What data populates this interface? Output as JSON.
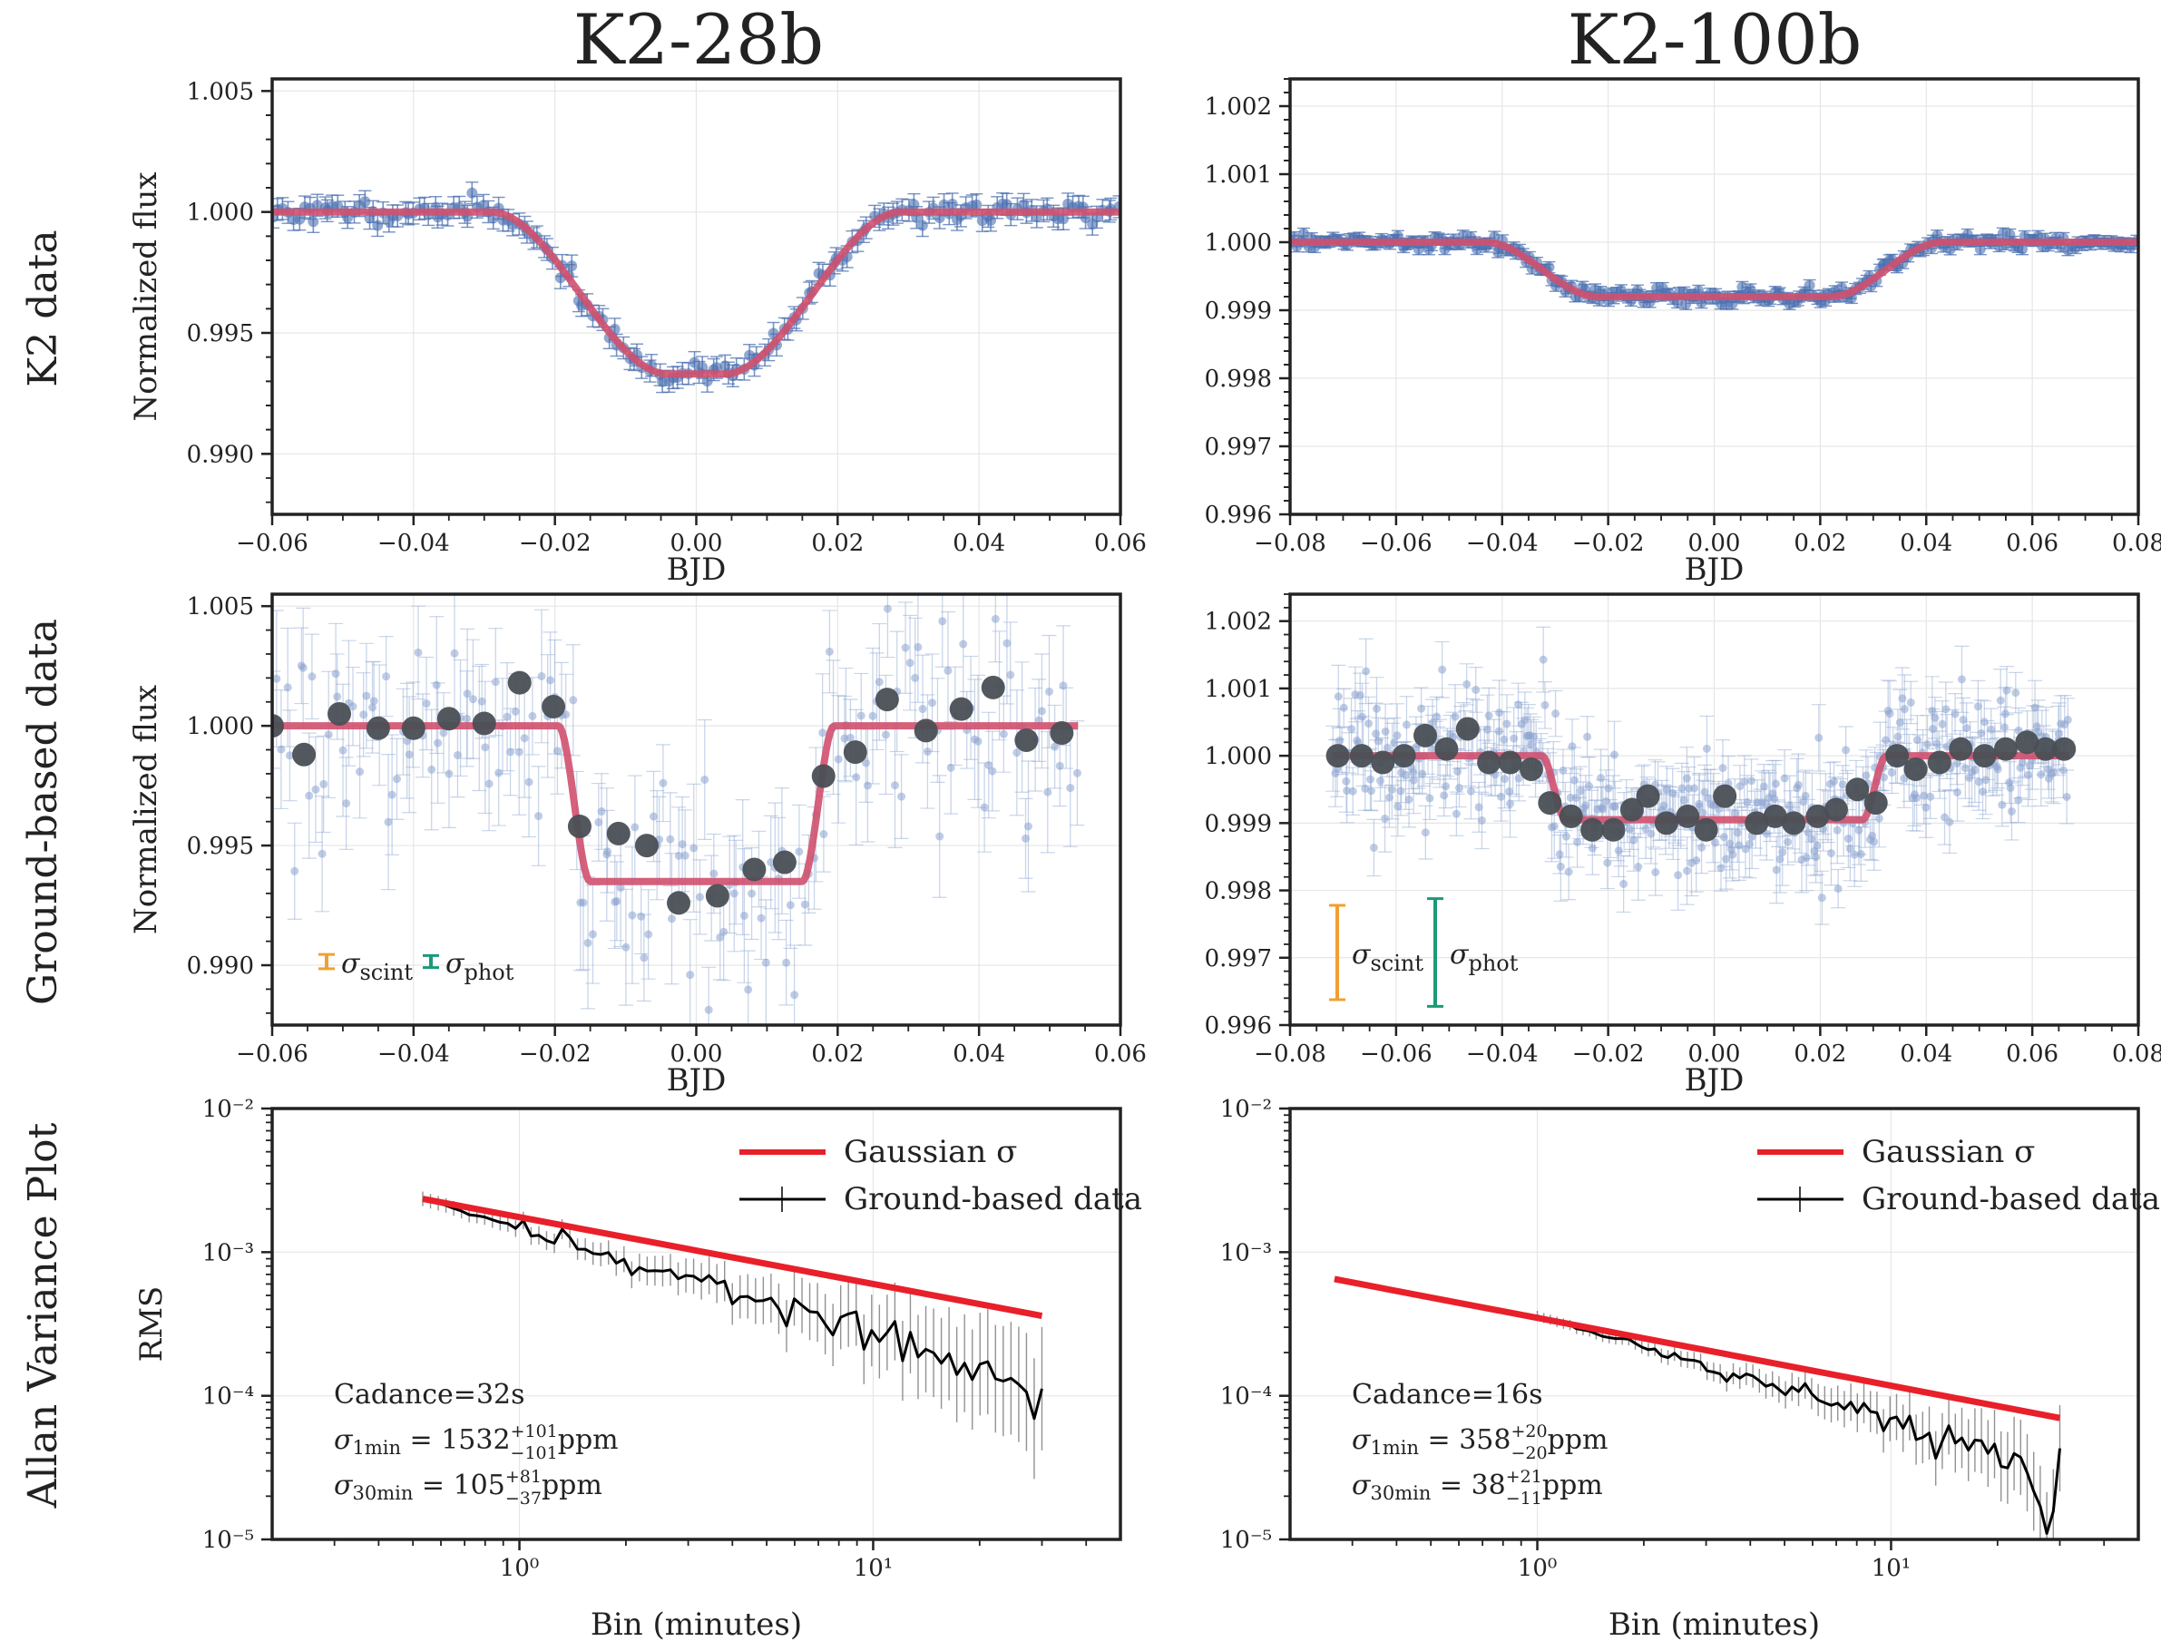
{
  "figure": {
    "column_titles": [
      "K2-28b",
      "K2-100b"
    ],
    "row_labels": [
      "K2 data",
      "Ground-based data",
      "Allan Variance Plot"
    ]
  },
  "chart_data": [
    {
      "id": "k2-28b-k2",
      "type": "scatter",
      "title": "",
      "xlabel": "BJD",
      "ylabel": "Normalized flux",
      "xlim": [
        -0.06,
        0.06
      ],
      "ylim": [
        0.9875,
        1.0055
      ],
      "xticks": [
        -0.06,
        -0.04,
        -0.02,
        0.0,
        0.02,
        0.04,
        0.06
      ],
      "xtick_labels": [
        "−0.06",
        "−0.04",
        "−0.02",
        "0.00",
        "0.02",
        "0.04",
        "0.06"
      ],
      "yticks": [
        0.99,
        0.995,
        1.0,
        1.005
      ],
      "ytick_labels": [
        "0.990",
        "0.995",
        "1.000",
        "1.005"
      ],
      "model": {
        "depth": 0.0067,
        "t14_half": 0.029,
        "t23_half": 0.004
      },
      "series": [
        {
          "role": "data-points",
          "x_range": [
            -0.06,
            0.06
          ],
          "n": 170,
          "scatter": 0.00022,
          "err": 0.00045
        },
        {
          "role": "model-line"
        }
      ],
      "grid": true
    },
    {
      "id": "k2-100b-k2",
      "type": "scatter",
      "title": "",
      "xlabel": "BJD",
      "ylabel": "",
      "xlim": [
        -0.08,
        0.08
      ],
      "ylim": [
        0.996,
        1.0024
      ],
      "xticks": [
        -0.08,
        -0.06,
        -0.04,
        -0.02,
        0.0,
        0.02,
        0.04,
        0.06,
        0.08
      ],
      "xtick_labels": [
        "−0.08",
        "−0.06",
        "−0.04",
        "−0.02",
        "0.00",
        "0.02",
        "0.04",
        "0.06",
        "0.08"
      ],
      "yticks": [
        0.996,
        0.997,
        0.998,
        0.999,
        1.0,
        1.001,
        1.002
      ],
      "ytick_labels": [
        "0.996",
        "0.997",
        "0.998",
        "0.999",
        "1.000",
        "1.001",
        "1.002"
      ],
      "model": {
        "depth": 0.0008,
        "t14_half": 0.043,
        "t23_half": 0.022
      },
      "series": [
        {
          "role": "data-points",
          "x_range": [
            -0.08,
            0.08
          ],
          "n": 260,
          "scatter": 6e-05,
          "err": 8e-05
        },
        {
          "role": "model-line"
        }
      ],
      "grid": true
    },
    {
      "id": "k2-28b-ground",
      "type": "scatter",
      "title": "",
      "xlabel": "BJD",
      "ylabel": "Normalized flux",
      "xlim": [
        -0.06,
        0.06
      ],
      "ylim": [
        0.9875,
        1.0055
      ],
      "xticks": [
        -0.06,
        -0.04,
        -0.02,
        0.0,
        0.02,
        0.04,
        0.06
      ],
      "xtick_labels": [
        "−0.06",
        "−0.04",
        "−0.02",
        "0.00",
        "0.02",
        "0.04",
        "0.06"
      ],
      "yticks": [
        0.99,
        0.995,
        1.0,
        1.005
      ],
      "ytick_labels": [
        "0.990",
        "0.995",
        "1.000",
        "1.005"
      ],
      "model": {
        "depth": 0.0065,
        "t14_half": 0.0195,
        "t23_half": 0.015,
        "curve": 0.0,
        "x_range": [
          -0.06,
          0.054
        ]
      },
      "raw": {
        "x_range": [
          -0.06,
          0.054
        ],
        "n": 190,
        "scatter": 0.0022,
        "err": 0.0022
      },
      "binned": {
        "x": [
          -0.06,
          -0.0555,
          -0.0505,
          -0.045,
          -0.04,
          -0.035,
          -0.03,
          -0.025,
          -0.0202,
          -0.0165,
          -0.011,
          -0.007,
          -0.0025,
          0.003,
          0.0082,
          0.0125,
          0.018,
          0.0225,
          0.027,
          0.0325,
          0.0375,
          0.042,
          0.0467,
          0.0517
        ],
        "y": [
          1.0,
          0.9988,
          1.0005,
          0.9999,
          0.9999,
          1.0003,
          1.0001,
          1.0018,
          1.0008,
          0.9958,
          0.9955,
          0.995,
          0.9926,
          0.9929,
          0.994,
          0.9943,
          0.9979,
          0.9989,
          1.0011,
          0.9998,
          1.0007,
          1.0016,
          0.9994,
          0.9997
        ]
      },
      "legend": [
        {
          "label_main": "σ",
          "label_sub": "scint",
          "color": "#f0a030",
          "err": 0.0006
        },
        {
          "label_main": "σ",
          "label_sub": "phot",
          "color": "#1a9a78",
          "err": 0.0005
        }
      ],
      "grid": true
    },
    {
      "id": "k2-100b-ground",
      "type": "scatter",
      "title": "",
      "xlabel": "BJD",
      "ylabel": "",
      "xlim": [
        -0.08,
        0.08
      ],
      "ylim": [
        0.996,
        1.0024
      ],
      "xticks": [
        -0.08,
        -0.06,
        -0.04,
        -0.02,
        0.0,
        0.02,
        0.04,
        0.06,
        0.08
      ],
      "xtick_labels": [
        "−0.08",
        "−0.06",
        "−0.04",
        "−0.02",
        "0.00",
        "0.02",
        "0.04",
        "0.06",
        "0.08"
      ],
      "yticks": [
        0.996,
        0.997,
        0.998,
        0.999,
        1.0,
        1.001,
        1.002
      ],
      "ytick_labels": [
        "0.996",
        "0.997",
        "0.998",
        "0.999",
        "1.000",
        "1.001",
        "1.002"
      ],
      "model": {
        "depth": 0.00095,
        "t14_half": 0.0325,
        "t23_half": 0.028,
        "curve": 0.0,
        "x_range": [
          -0.072,
          0.067
        ]
      },
      "raw": {
        "x_range": [
          -0.072,
          0.067
        ],
        "n": 420,
        "scatter": 0.00045,
        "err": 0.0004
      },
      "binned": {
        "x": [
          -0.071,
          -0.0665,
          -0.0625,
          -0.0585,
          -0.0545,
          -0.0505,
          -0.0465,
          -0.0425,
          -0.0385,
          -0.0345,
          -0.031,
          -0.027,
          -0.023,
          -0.019,
          -0.0155,
          -0.0125,
          -0.009,
          -0.005,
          -0.0015,
          0.002,
          0.008,
          0.0115,
          0.015,
          0.0195,
          0.023,
          0.027,
          0.0305,
          0.0345,
          0.038,
          0.0425,
          0.0465,
          0.051,
          0.055,
          0.059,
          0.0625,
          0.066
        ],
        "y": [
          1.0,
          1.0,
          0.9999,
          1.0,
          1.0003,
          1.0001,
          1.0004,
          0.9999,
          0.9999,
          0.9998,
          0.9993,
          0.9991,
          0.9989,
          0.9989,
          0.9992,
          0.9994,
          0.999,
          0.9991,
          0.9989,
          0.9994,
          0.999,
          0.9991,
          0.999,
          0.9991,
          0.9992,
          0.9995,
          0.9993,
          1.0,
          0.9998,
          0.9999,
          1.0001,
          1.0,
          1.0001,
          1.0002,
          1.0001,
          1.0001
        ]
      },
      "legend": [
        {
          "label_main": "σ",
          "label_sub": "scint",
          "color": "#f0a030",
          "err": 0.0014
        },
        {
          "label_main": "σ",
          "label_sub": "phot",
          "color": "#1a9a78",
          "err": 0.0016
        }
      ],
      "grid": true
    },
    {
      "id": "k2-28b-allan",
      "type": "line",
      "log_x": true,
      "log_y": true,
      "xlabel": "Bin (minutes)",
      "ylabel": "RMS",
      "xlim": [
        0.2,
        50
      ],
      "ylim": [
        1e-05,
        0.01
      ],
      "xticks": [
        1,
        10
      ],
      "xtick_labels": [
        "10⁰",
        "10¹"
      ],
      "yticks": [
        1e-05,
        0.0001,
        0.001,
        0.01
      ],
      "ytick_labels": [
        "10⁻⁵",
        "10⁻⁴",
        "10⁻³",
        "10⁻²"
      ],
      "series": [
        {
          "name": "Gaussian σ",
          "color": "#e8202a",
          "x": [
            0.533,
            30
          ],
          "y": [
            0.00235,
            0.00036
          ]
        },
        {
          "name": "Ground-based data",
          "color": "#000000",
          "x_range": [
            0.533,
            30
          ],
          "y_start": 0.00235,
          "y_end": 0.00011,
          "noise": 0.12
        }
      ],
      "annotations": [
        {
          "text": "Cadance=32s"
        },
        {
          "main": "σ",
          "sub": "1min",
          "value": "1532",
          "sup": "+101",
          "inf": "−101",
          "unit": "ppm"
        },
        {
          "main": "σ",
          "sub": "30min",
          "value": "105",
          "sup": "+81",
          "inf": "−37",
          "unit": "ppm"
        }
      ],
      "legend_position": "top-right",
      "grid": true
    },
    {
      "id": "k2-100b-allan",
      "type": "line",
      "log_x": true,
      "log_y": true,
      "xlabel": "Bin (minutes)",
      "ylabel": "",
      "xlim": [
        0.2,
        50
      ],
      "ylim": [
        1e-05,
        0.01
      ],
      "xticks": [
        1,
        10
      ],
      "xtick_labels": [
        "10⁰",
        "10¹"
      ],
      "yticks": [
        1e-05,
        0.0001,
        0.001,
        0.01
      ],
      "ytick_labels": [
        "10⁻⁵",
        "10⁻⁴",
        "10⁻³",
        "10⁻²"
      ],
      "series": [
        {
          "name": "Gaussian σ",
          "color": "#e8202a",
          "x": [
            0.267,
            30
          ],
          "y": [
            0.00065,
            7e-05
          ]
        },
        {
          "name": "Ground-based data",
          "color": "#000000",
          "x_range": [
            1.0,
            30
          ],
          "y_start": 0.00036,
          "y_end": 3e-05,
          "noise": 0.08
        }
      ],
      "annotations": [
        {
          "text": "Cadance=16s"
        },
        {
          "main": "σ",
          "sub": "1min",
          "value": "358",
          "sup": "+20",
          "inf": "−20",
          "unit": "ppm"
        },
        {
          "main": "σ",
          "sub": "30min",
          "value": "38",
          "sup": "+21",
          "inf": "−11",
          "unit": "ppm"
        }
      ],
      "legend_position": "top-right",
      "grid": true
    }
  ],
  "colors": {
    "k2_points": "#4a6fb0",
    "raw_points": "#8aa3d0",
    "model": "#d0506e",
    "binned": "#4a4f55",
    "gaussian": "#e8202a",
    "ground": "#000000",
    "grid": "#e6e6e6"
  }
}
